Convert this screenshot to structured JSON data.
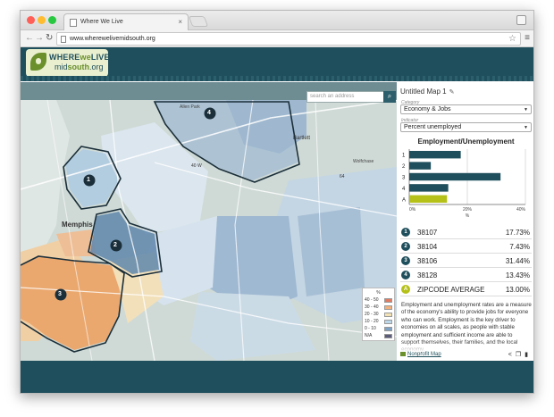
{
  "browser": {
    "tab_title": "Where We Live",
    "url": "www.wherewelivemidsouth.org"
  },
  "site": {
    "logo_line1_a": "WHERE",
    "logo_line1_b": "we",
    "logo_line1_c": "LIVE",
    "logo_line2_a": "mid",
    "logo_line2_b": "south",
    "logo_line2_c": ".org"
  },
  "map": {
    "search_placeholder": "search an address",
    "labels": {
      "memphis": "Memphis",
      "bartlett": "Bartlett",
      "allen_park": "Allen Park",
      "wolfchase": "Wolfchase",
      "road_40w": "40 W",
      "road_64": "64"
    },
    "markers": [
      "1",
      "2",
      "3",
      "4"
    ],
    "legend": {
      "unit": "%",
      "rows": [
        {
          "label": "40 - 50",
          "color": "#e07b63"
        },
        {
          "label": "30 - 40",
          "color": "#f2b27f"
        },
        {
          "label": "20 - 30",
          "color": "#f2e2b4"
        },
        {
          "label": "10 - 20",
          "color": "#bcd8e8"
        },
        {
          "label": "0 - 10",
          "color": "#7ea2c4"
        },
        {
          "label": "N/A",
          "color": "#5b5b7a"
        }
      ]
    }
  },
  "panel": {
    "map_title": "Untitled Map 1",
    "category_label": "Category",
    "category_value": "Economy & Jobs",
    "indicator_label": "Indicator",
    "indicator_value": "Percent unemployed",
    "chart_title": "Employment/Unemployment",
    "rows": [
      {
        "badge": "1",
        "zip": "38107",
        "value": "17.73%"
      },
      {
        "badge": "2",
        "zip": "38104",
        "value": "7.43%"
      },
      {
        "badge": "3",
        "zip": "38106",
        "value": "31.44%"
      },
      {
        "badge": "4",
        "zip": "38128",
        "value": "13.43%"
      },
      {
        "badge": "A",
        "zip": "ZIPCODE AVERAGE",
        "value": "13.00%"
      }
    ],
    "description": "Employment and unemployment rates are a measure of the economy's ability to provide jobs for everyone who can work. Employment is the key driver to economies on all scales, as people with stable employment and sufficient income are able to support themselves, their families, and the local economy.",
    "footer_link": "Nonprofit Map"
  },
  "chart_data": {
    "type": "bar",
    "orientation": "horizontal",
    "categories": [
      "1",
      "2",
      "3",
      "4",
      "A"
    ],
    "values": [
      17.73,
      7.43,
      31.44,
      13.43,
      13.0
    ],
    "colors": [
      "#1f4f5c",
      "#1f4f5c",
      "#1f4f5c",
      "#1f4f5c",
      "#b5c018"
    ],
    "title": "Employment/Unemployment",
    "xlabel": "%",
    "ylabel": "",
    "xlim": [
      0,
      40
    ],
    "xticks": [
      "0%",
      "20%",
      "40%"
    ],
    "grid": true
  }
}
